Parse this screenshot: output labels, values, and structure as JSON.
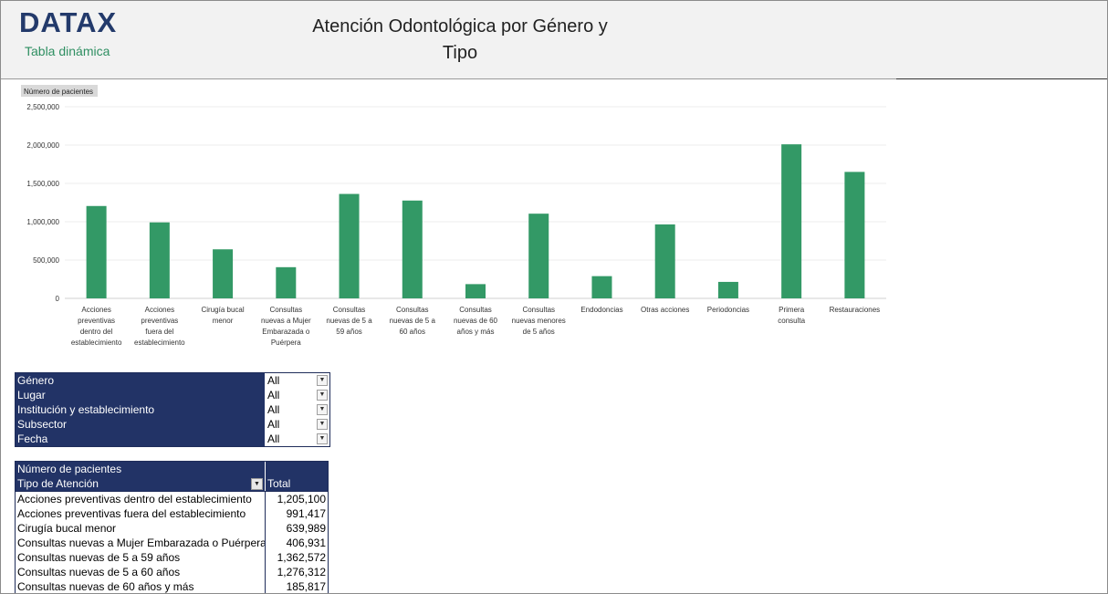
{
  "header": {
    "logo": "DATAX",
    "subtitle": "Tabla dinámica",
    "title_line1": "Atención Odontológica por Género y",
    "title_line2": "Tipo"
  },
  "chart_data": {
    "type": "bar",
    "ylabel": "Número de pacientes",
    "ylim": [
      0,
      2500000
    ],
    "yticks": [
      "0",
      "500,000",
      "1,000,000",
      "1,500,000",
      "2,000,000",
      "2,500,000"
    ],
    "ytick_values": [
      0,
      500000,
      1000000,
      1500000,
      2000000,
      2500000
    ],
    "categories": [
      [
        "Acciones",
        "preventivas",
        "dentro del",
        "establecimiento"
      ],
      [
        "Acciones",
        "preventivas",
        "fuera del",
        "establecimiento"
      ],
      [
        "Cirugía bucal",
        "menor"
      ],
      [
        "Consultas",
        "nuevas a Mujer",
        "Embarazada o",
        "Puérpera"
      ],
      [
        "Consultas",
        "nuevas de 5 a",
        "59 años"
      ],
      [
        "Consultas",
        "nuevas de 5 a",
        "60 años"
      ],
      [
        "Consultas",
        "nuevas de 60",
        "años y más"
      ],
      [
        "Consultas",
        "nuevas menores",
        "de 5 años"
      ],
      [
        "Endodoncias"
      ],
      [
        "Otras acciones"
      ],
      [
        "Periodoncias"
      ],
      [
        "Primera",
        "consulta"
      ],
      [
        "Restauraciones"
      ]
    ],
    "values": [
      1205100,
      991417,
      639989,
      406931,
      1362572,
      1276312,
      185817,
      1105000,
      290000,
      965000,
      215000,
      2010000,
      1650000
    ],
    "grid": true,
    "color": "#339966"
  },
  "filters": [
    {
      "label": "Género",
      "value": "All"
    },
    {
      "label": "Lugar",
      "value": "All"
    },
    {
      "label": "Institución y establecimiento",
      "value": "All"
    },
    {
      "label": "Subsector",
      "value": "All"
    },
    {
      "label": "Fecha",
      "value": "All"
    }
  ],
  "pivot": {
    "measure": "Número de pacientes",
    "row_header": "Tipo de Atención",
    "col_header": "Total",
    "rows": [
      {
        "label": "Acciones preventivas dentro del establecimiento",
        "value": "1,205,100"
      },
      {
        "label": "Acciones preventivas fuera del establecimiento",
        "value": "991,417"
      },
      {
        "label": "Cirugía bucal menor",
        "value": "639,989"
      },
      {
        "label": "Consultas nuevas a Mujer Embarazada o Puérpera",
        "value": "406,931"
      },
      {
        "label": "Consultas nuevas de 5 a 59 años",
        "value": "1,362,572"
      },
      {
        "label": "Consultas nuevas de 5 a 60 años",
        "value": "1,276,312"
      },
      {
        "label": "Consultas nuevas de 60 años y más",
        "value": "185,817"
      }
    ]
  }
}
